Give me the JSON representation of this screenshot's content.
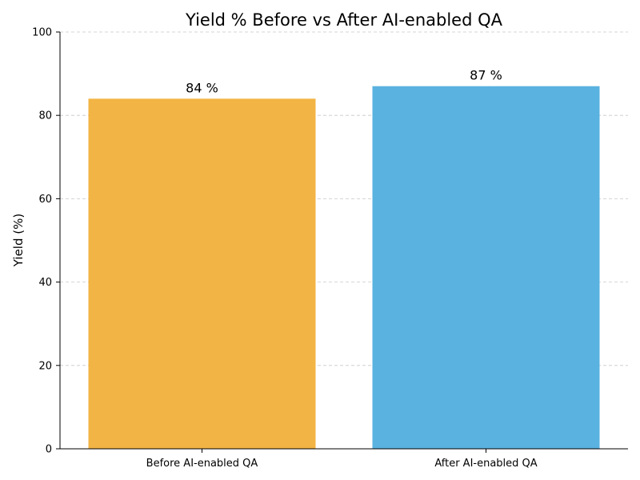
{
  "chart_data": {
    "type": "bar",
    "title": "Yield % Before vs After AI-enabled QA",
    "xlabel": "",
    "ylabel": "Yield (%)",
    "categories": [
      "Before AI-enabled QA",
      "After AI-enabled QA"
    ],
    "values": [
      84,
      87
    ],
    "data_labels": [
      "84 %",
      "87 %"
    ],
    "colors": [
      "#F2B444",
      "#5AB2E0"
    ],
    "ylim": [
      0,
      100
    ],
    "yticks": [
      0,
      20,
      40,
      60,
      80,
      100
    ],
    "grid": "y-dashed",
    "legend": "none"
  }
}
